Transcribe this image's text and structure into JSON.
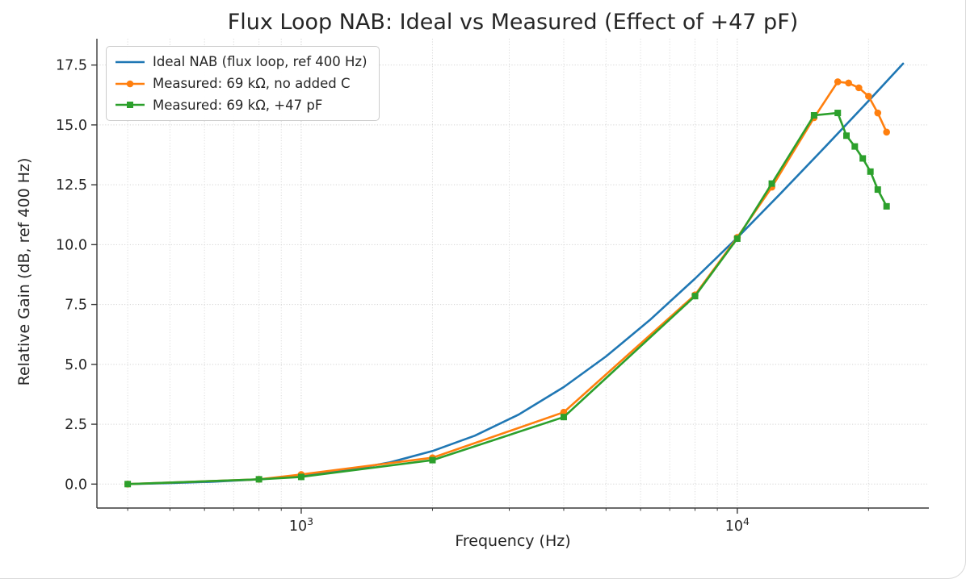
{
  "chart_data": {
    "type": "line",
    "title": "Flux Loop NAB: Ideal vs Measured (Effect of +47 pF)",
    "xlabel": "Frequency (Hz)",
    "ylabel": "Relative Gain (dB, ref 400 Hz)",
    "x_scale": "log",
    "xlim": [
      340,
      27500
    ],
    "ylim": [
      -1.0,
      18.6
    ],
    "y_ticks": [
      0.0,
      2.5,
      5.0,
      7.5,
      10.0,
      12.5,
      15.0,
      17.5
    ],
    "x_major_ticks": [
      1000,
      10000
    ],
    "x_major_tick_labels": [
      "10^3",
      "10^4"
    ],
    "grid": true,
    "legend_position": "upper left",
    "series": [
      {
        "name": "Ideal NAB (flux loop, ref 400 Hz)",
        "color": "#1f77b4",
        "marker": "none",
        "x": [
          400,
          500,
          630,
          800,
          1000,
          1250,
          1600,
          2000,
          2500,
          3150,
          4000,
          5000,
          6300,
          8000,
          10000,
          12500,
          16000,
          20000,
          24000
        ],
        "y": [
          0.0,
          0.04,
          0.1,
          0.2,
          0.34,
          0.55,
          0.91,
          1.38,
          2.02,
          2.9,
          4.05,
          5.33,
          6.85,
          8.58,
          10.29,
          12.09,
          14.13,
          16.0,
          17.56
        ]
      },
      {
        "name": "Measured: 69 kΩ, no added C",
        "color": "#ff7f0e",
        "marker": "circle",
        "x": [
          400,
          800,
          1000,
          2000,
          4000,
          8000,
          10000,
          12000,
          15000,
          17000,
          18000,
          19000,
          20000,
          21000,
          22000
        ],
        "y": [
          0.0,
          0.2,
          0.4,
          1.1,
          3.0,
          7.9,
          10.3,
          12.4,
          15.3,
          16.8,
          16.75,
          16.55,
          16.2,
          15.5,
          14.7
        ]
      },
      {
        "name": "Measured: 69 kΩ, +47 pF",
        "color": "#2ca02c",
        "marker": "square",
        "x": [
          400,
          800,
          1000,
          2000,
          4000,
          8000,
          10000,
          12000,
          15000,
          17000,
          17800,
          18600,
          19400,
          20200,
          21000,
          22000
        ],
        "y": [
          0.0,
          0.2,
          0.3,
          1.0,
          2.8,
          7.85,
          10.25,
          12.55,
          15.4,
          15.5,
          14.55,
          14.1,
          13.6,
          13.05,
          12.3,
          11.6
        ]
      }
    ]
  }
}
